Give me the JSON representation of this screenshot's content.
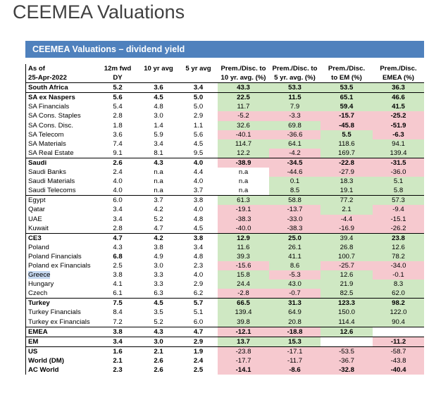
{
  "page_title": "CEEMEA Valuations",
  "banner": "CEEMEA Valuations – dividend yield",
  "header": {
    "row1": [
      "As of",
      "12m fwd",
      "10 yr avg",
      "5 yr avg",
      "Prem./Disc. to",
      "Prem./Disc. to",
      "Prem./Disc.",
      "Prem./Disc."
    ],
    "row2": [
      "25-Apr-2022",
      "DY",
      "",
      "",
      "10 yr. avg. (%)",
      "5 yr. avg. (%)",
      "to EM (%)",
      "EMEA (%)"
    ]
  },
  "rows": [
    {
      "label": "South Africa",
      "bold": true,
      "sep": false,
      "v": [
        "5.2",
        "3.6",
        "3.4",
        "43.3",
        "53.3",
        "53.5",
        "36.3"
      ],
      "c": [
        "g",
        "g",
        "g",
        "g"
      ]
    },
    {
      "label": "SA ex Naspers",
      "bold": true,
      "sep": true,
      "v": [
        "5.6",
        "4.5",
        "5.0",
        "22.5",
        "11.5",
        "65.1",
        "46.6"
      ],
      "c": [
        "g",
        "g",
        "g",
        "g"
      ]
    },
    {
      "label": "SA Financials",
      "bold": false,
      "sep": false,
      "v": [
        "5.4",
        "4.8",
        "5.0",
        "11.7",
        "7.9",
        "59.4",
        "41.5"
      ],
      "c": [
        "g",
        "g",
        "g",
        "g"
      ],
      "b": [
        false,
        false,
        false,
        false,
        false,
        true,
        true
      ]
    },
    {
      "label": "SA Cons. Staples",
      "bold": false,
      "sep": false,
      "v": [
        "2.8",
        "3.0",
        "2.9",
        "-5.2",
        "-3.3",
        "-15.7",
        "-25.2"
      ],
      "c": [
        "r",
        "r",
        "r",
        "r"
      ],
      "b": [
        false,
        false,
        false,
        false,
        false,
        true,
        true
      ]
    },
    {
      "label": "SA Cons. Disc.",
      "bold": false,
      "sep": false,
      "v": [
        "1.8",
        "1.4",
        "1.1",
        "32.6",
        "69.8",
        "-45.8",
        "-51.9"
      ],
      "c": [
        "g",
        "g",
        "r",
        "r"
      ],
      "b": [
        false,
        false,
        false,
        false,
        false,
        true,
        true
      ]
    },
    {
      "label": "SA Telecom",
      "bold": false,
      "sep": false,
      "v": [
        "3.6",
        "5.9",
        "5.6",
        "-40.1",
        "-36.6",
        "5.5",
        "-6.3"
      ],
      "c": [
        "r",
        "r",
        "g",
        "r"
      ],
      "b": [
        false,
        false,
        false,
        false,
        false,
        true,
        true
      ]
    },
    {
      "label": "SA Materials",
      "bold": false,
      "sep": false,
      "v": [
        "7.4",
        "3.4",
        "4.5",
        "114.7",
        "64.1",
        "118.6",
        "94.1"
      ],
      "c": [
        "g",
        "g",
        "g",
        "g"
      ]
    },
    {
      "label": "SA Real Estate",
      "bold": false,
      "sep": false,
      "v": [
        "9.1",
        "8.1",
        "9.5",
        "12.2",
        "-4.2",
        "169.7",
        "139.4"
      ],
      "c": [
        "g",
        "r",
        "g",
        "g"
      ]
    },
    {
      "label": "Saudi",
      "bold": true,
      "sep": true,
      "v": [
        "2.6",
        "4.3",
        "4.0",
        "-38.9",
        "-34.5",
        "-22.8",
        "-31.5"
      ],
      "c": [
        "r",
        "r",
        "r",
        "r"
      ]
    },
    {
      "label": "Saudi Banks",
      "bold": false,
      "sep": false,
      "v": [
        "2.4",
        "n.a",
        "4.4",
        "n.a",
        "-44.6",
        "-27.9",
        "-36.0"
      ],
      "c": [
        "w",
        "r",
        "r",
        "r"
      ]
    },
    {
      "label": "Saudi Materials",
      "bold": false,
      "sep": false,
      "v": [
        "4.0",
        "n.a",
        "4.0",
        "n.a",
        "0.1",
        "18.3",
        "5.1"
      ],
      "c": [
        "w",
        "g",
        "g",
        "g"
      ]
    },
    {
      "label": "Saudi Telecoms",
      "bold": false,
      "sep": false,
      "v": [
        "4.0",
        "n.a",
        "3.7",
        "n.a",
        "8.5",
        "19.1",
        "5.8"
      ],
      "c": [
        "w",
        "g",
        "g",
        "g"
      ]
    },
    {
      "label": "Egypt",
      "bold": false,
      "sep": true,
      "v": [
        "6.0",
        "3.7",
        "3.8",
        "61.3",
        "58.8",
        "77.2",
        "57.3"
      ],
      "c": [
        "g",
        "g",
        "g",
        "g"
      ]
    },
    {
      "label": "Qatar",
      "bold": false,
      "sep": false,
      "v": [
        "3.4",
        "4.2",
        "4.0",
        "-19.1",
        "-13.7",
        "2.1",
        "-9.4"
      ],
      "c": [
        "r",
        "r",
        "g",
        "r"
      ]
    },
    {
      "label": "UAE",
      "bold": false,
      "sep": false,
      "v": [
        "3.4",
        "5.2",
        "4.8",
        "-38.3",
        "-33.0",
        "-4.4",
        "-15.1"
      ],
      "c": [
        "r",
        "r",
        "r",
        "r"
      ]
    },
    {
      "label": "Kuwait",
      "bold": false,
      "sep": false,
      "v": [
        "2.8",
        "4.7",
        "4.5",
        "-40.0",
        "-38.3",
        "-16.9",
        "-26.2"
      ],
      "c": [
        "r",
        "r",
        "r",
        "r"
      ]
    },
    {
      "label": "CE3",
      "bold": true,
      "sep": true,
      "v": [
        "4.7",
        "4.2",
        "3.8",
        "12.9",
        "25.0",
        "39.4",
        "23.8"
      ],
      "c": [
        "g",
        "g",
        "g",
        "g"
      ],
      "b": [
        true,
        true,
        true,
        true,
        true,
        false,
        true
      ]
    },
    {
      "label": "Poland",
      "bold": false,
      "sep": false,
      "v": [
        "4.3",
        "3.8",
        "3.4",
        "11.6",
        "26.1",
        "26.8",
        "12.6"
      ],
      "c": [
        "g",
        "g",
        "g",
        "g"
      ]
    },
    {
      "label": "Poland Financials",
      "bold": false,
      "sep": false,
      "v": [
        "6.8",
        "4.9",
        "4.8",
        "39.3",
        "41.1",
        "100.7",
        "78.2"
      ],
      "c": [
        "g",
        "g",
        "g",
        "g"
      ],
      "b": [
        true,
        false,
        false,
        false,
        false,
        false,
        false
      ]
    },
    {
      "label": "Poland ex Financials",
      "bold": false,
      "sep": false,
      "v": [
        "2.5",
        "3.0",
        "2.3",
        "-15.6",
        "8.6",
        "-25.7",
        "-34.0"
      ],
      "c": [
        "r",
        "g",
        "r",
        "r"
      ]
    },
    {
      "label": "Greece",
      "bold": false,
      "sep": false,
      "hl": true,
      "v": [
        "3.8",
        "3.3",
        "4.0",
        "15.8",
        "-5.3",
        "12.6",
        "-0.1"
      ],
      "c": [
        "g",
        "r",
        "g",
        "r"
      ]
    },
    {
      "label": "Hungary",
      "bold": false,
      "sep": false,
      "v": [
        "4.1",
        "3.3",
        "2.9",
        "24.4",
        "43.0",
        "21.9",
        "8.3"
      ],
      "c": [
        "g",
        "g",
        "g",
        "g"
      ]
    },
    {
      "label": "Czech",
      "bold": false,
      "sep": false,
      "v": [
        "6.1",
        "6.3",
        "6.2",
        "-2.8",
        "-0.7",
        "82.5",
        "62.0"
      ],
      "c": [
        "r",
        "r",
        "g",
        "g"
      ]
    },
    {
      "label": "Turkey",
      "bold": true,
      "sep": true,
      "v": [
        "7.5",
        "4.5",
        "5.7",
        "66.5",
        "31.3",
        "123.3",
        "98.2"
      ],
      "c": [
        "g",
        "g",
        "g",
        "g"
      ]
    },
    {
      "label": "Turkey Financials",
      "bold": false,
      "sep": false,
      "v": [
        "8.4",
        "3.5",
        "5.1",
        "139.4",
        "64.9",
        "150.0",
        "122.0"
      ],
      "c": [
        "g",
        "g",
        "g",
        "g"
      ]
    },
    {
      "label": "Turkey ex Financials",
      "bold": false,
      "sep": false,
      "v": [
        "7.2",
        "5.2",
        "6.0",
        "39.8",
        "20.8",
        "114.4",
        "90.4"
      ],
      "c": [
        "g",
        "g",
        "g",
        "g"
      ]
    },
    {
      "label": "EMEA",
      "bold": true,
      "sep": true,
      "v": [
        "3.8",
        "4.3",
        "4.7",
        "-12.1",
        "-18.8",
        "12.6",
        ""
      ],
      "c": [
        "r",
        "r",
        "g",
        "w"
      ]
    },
    {
      "label": "EM",
      "bold": true,
      "sep": true,
      "v": [
        "3.4",
        "3.0",
        "2.9",
        "13.7",
        "15.3",
        "",
        "-11.2"
      ],
      "c": [
        "g",
        "g",
        "w",
        "r"
      ]
    },
    {
      "label": "US",
      "bold": true,
      "sep": true,
      "v": [
        "1.6",
        "2.1",
        "1.9",
        "-23.8",
        "-17.1",
        "-53.5",
        "-58.7"
      ],
      "c": [
        "r",
        "r",
        "r",
        "r"
      ],
      "b": [
        true,
        true,
        true,
        false,
        false,
        false,
        false
      ]
    },
    {
      "label": "World (DM)",
      "bold": true,
      "sep": false,
      "v": [
        "2.1",
        "2.6",
        "2.4",
        "-17.7",
        "-11.7",
        "-36.7",
        "-43.8"
      ],
      "c": [
        "r",
        "r",
        "r",
        "r"
      ],
      "b": [
        true,
        true,
        true,
        false,
        false,
        false,
        false
      ]
    },
    {
      "label": "AC World",
      "bold": true,
      "sep": false,
      "v": [
        "2.3",
        "2.6",
        "2.5",
        "-14.1",
        "-8.6",
        "-32.8",
        "-40.4"
      ],
      "c": [
        "r",
        "r",
        "r",
        "r"
      ]
    }
  ]
}
